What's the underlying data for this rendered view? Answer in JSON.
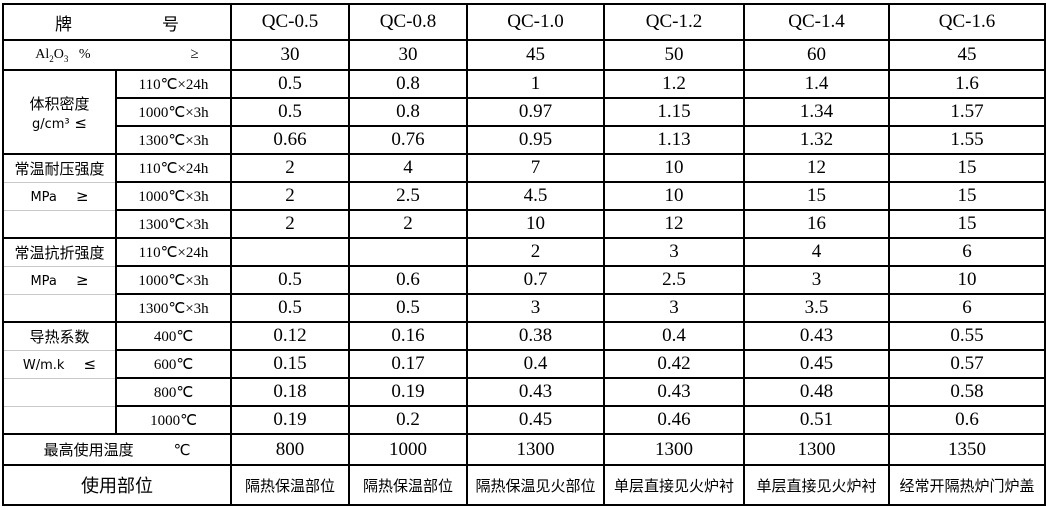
{
  "header": {
    "label_a": "牌",
    "label_b": "号",
    "grades": [
      "QC-0.5",
      "QC-0.8",
      "QC-1.0",
      "QC-1.2",
      "QC-1.4",
      "QC-1.6"
    ]
  },
  "alumina": {
    "label": "Al2O3  %",
    "op": "≥",
    "values": [
      "30",
      "30",
      "45",
      "50",
      "60",
      "45"
    ]
  },
  "groups": [
    {
      "name": "体积密度",
      "unit": "g/cm³",
      "op": "≤",
      "rows": [
        {
          "cond": "110℃×24h",
          "values": [
            "0.5",
            "0.8",
            "1",
            "1.2",
            "1.4",
            "1.6"
          ]
        },
        {
          "cond": "1000℃×3h",
          "values": [
            "0.5",
            "0.8",
            "0.97",
            "1.15",
            "1.34",
            "1.57"
          ]
        },
        {
          "cond": "1300℃×3h",
          "values": [
            "0.66",
            "0.76",
            "0.95",
            "1.13",
            "1.32",
            "1.55"
          ]
        }
      ]
    },
    {
      "name": "常温耐压强度",
      "unit": "MPa",
      "op": "≥",
      "rows": [
        {
          "cond": "110℃×24h",
          "values": [
            "2",
            "4",
            "7",
            "10",
            "12",
            "15"
          ]
        },
        {
          "cond": "1000℃×3h",
          "values": [
            "2",
            "2.5",
            "4.5",
            "10",
            "15",
            "15"
          ]
        },
        {
          "cond": "1300℃×3h",
          "values": [
            "2",
            "2",
            "10",
            "12",
            "16",
            "15"
          ]
        }
      ]
    },
    {
      "name": "常温抗折强度",
      "unit": "MPa",
      "op": "≥",
      "rows": [
        {
          "cond": "110℃×24h",
          "values": [
            "",
            "",
            "2",
            "3",
            "4",
            "6"
          ]
        },
        {
          "cond": "1000℃×3h",
          "values": [
            "0.5",
            "0.6",
            "0.7",
            "2.5",
            "3",
            "10"
          ]
        },
        {
          "cond": "1300℃×3h",
          "values": [
            "0.5",
            "0.5",
            "3",
            "3",
            "3.5",
            "6"
          ]
        }
      ]
    },
    {
      "name": "导热系数",
      "unit": "W/m.k",
      "op": "≤",
      "rows": [
        {
          "cond": "400℃",
          "values": [
            "0.12",
            "0.16",
            "0.38",
            "0.4",
            "0.43",
            "0.55"
          ]
        },
        {
          "cond": "600℃",
          "values": [
            "0.15",
            "0.17",
            "0.4",
            "0.42",
            "0.45",
            "0.57"
          ]
        },
        {
          "cond": "800℃",
          "values": [
            "0.18",
            "0.19",
            "0.43",
            "0.43",
            "0.48",
            "0.58"
          ]
        },
        {
          "cond": "1000℃",
          "values": [
            "0.19",
            "0.2",
            "0.45",
            "0.46",
            "0.51",
            "0.6"
          ]
        }
      ]
    }
  ],
  "max_temp": {
    "label": "最高使用温度",
    "unit": "℃",
    "values": [
      "800",
      "1000",
      "1300",
      "1300",
      "1300",
      "1350"
    ]
  },
  "usage": {
    "label": "使用部位",
    "values": [
      "隔热保温部位",
      "隔热保温部位",
      "隔热保温见火部位",
      "单层直接见火炉衬",
      "单层直接见火炉衬",
      "经常开隔热炉门炉盖"
    ]
  }
}
